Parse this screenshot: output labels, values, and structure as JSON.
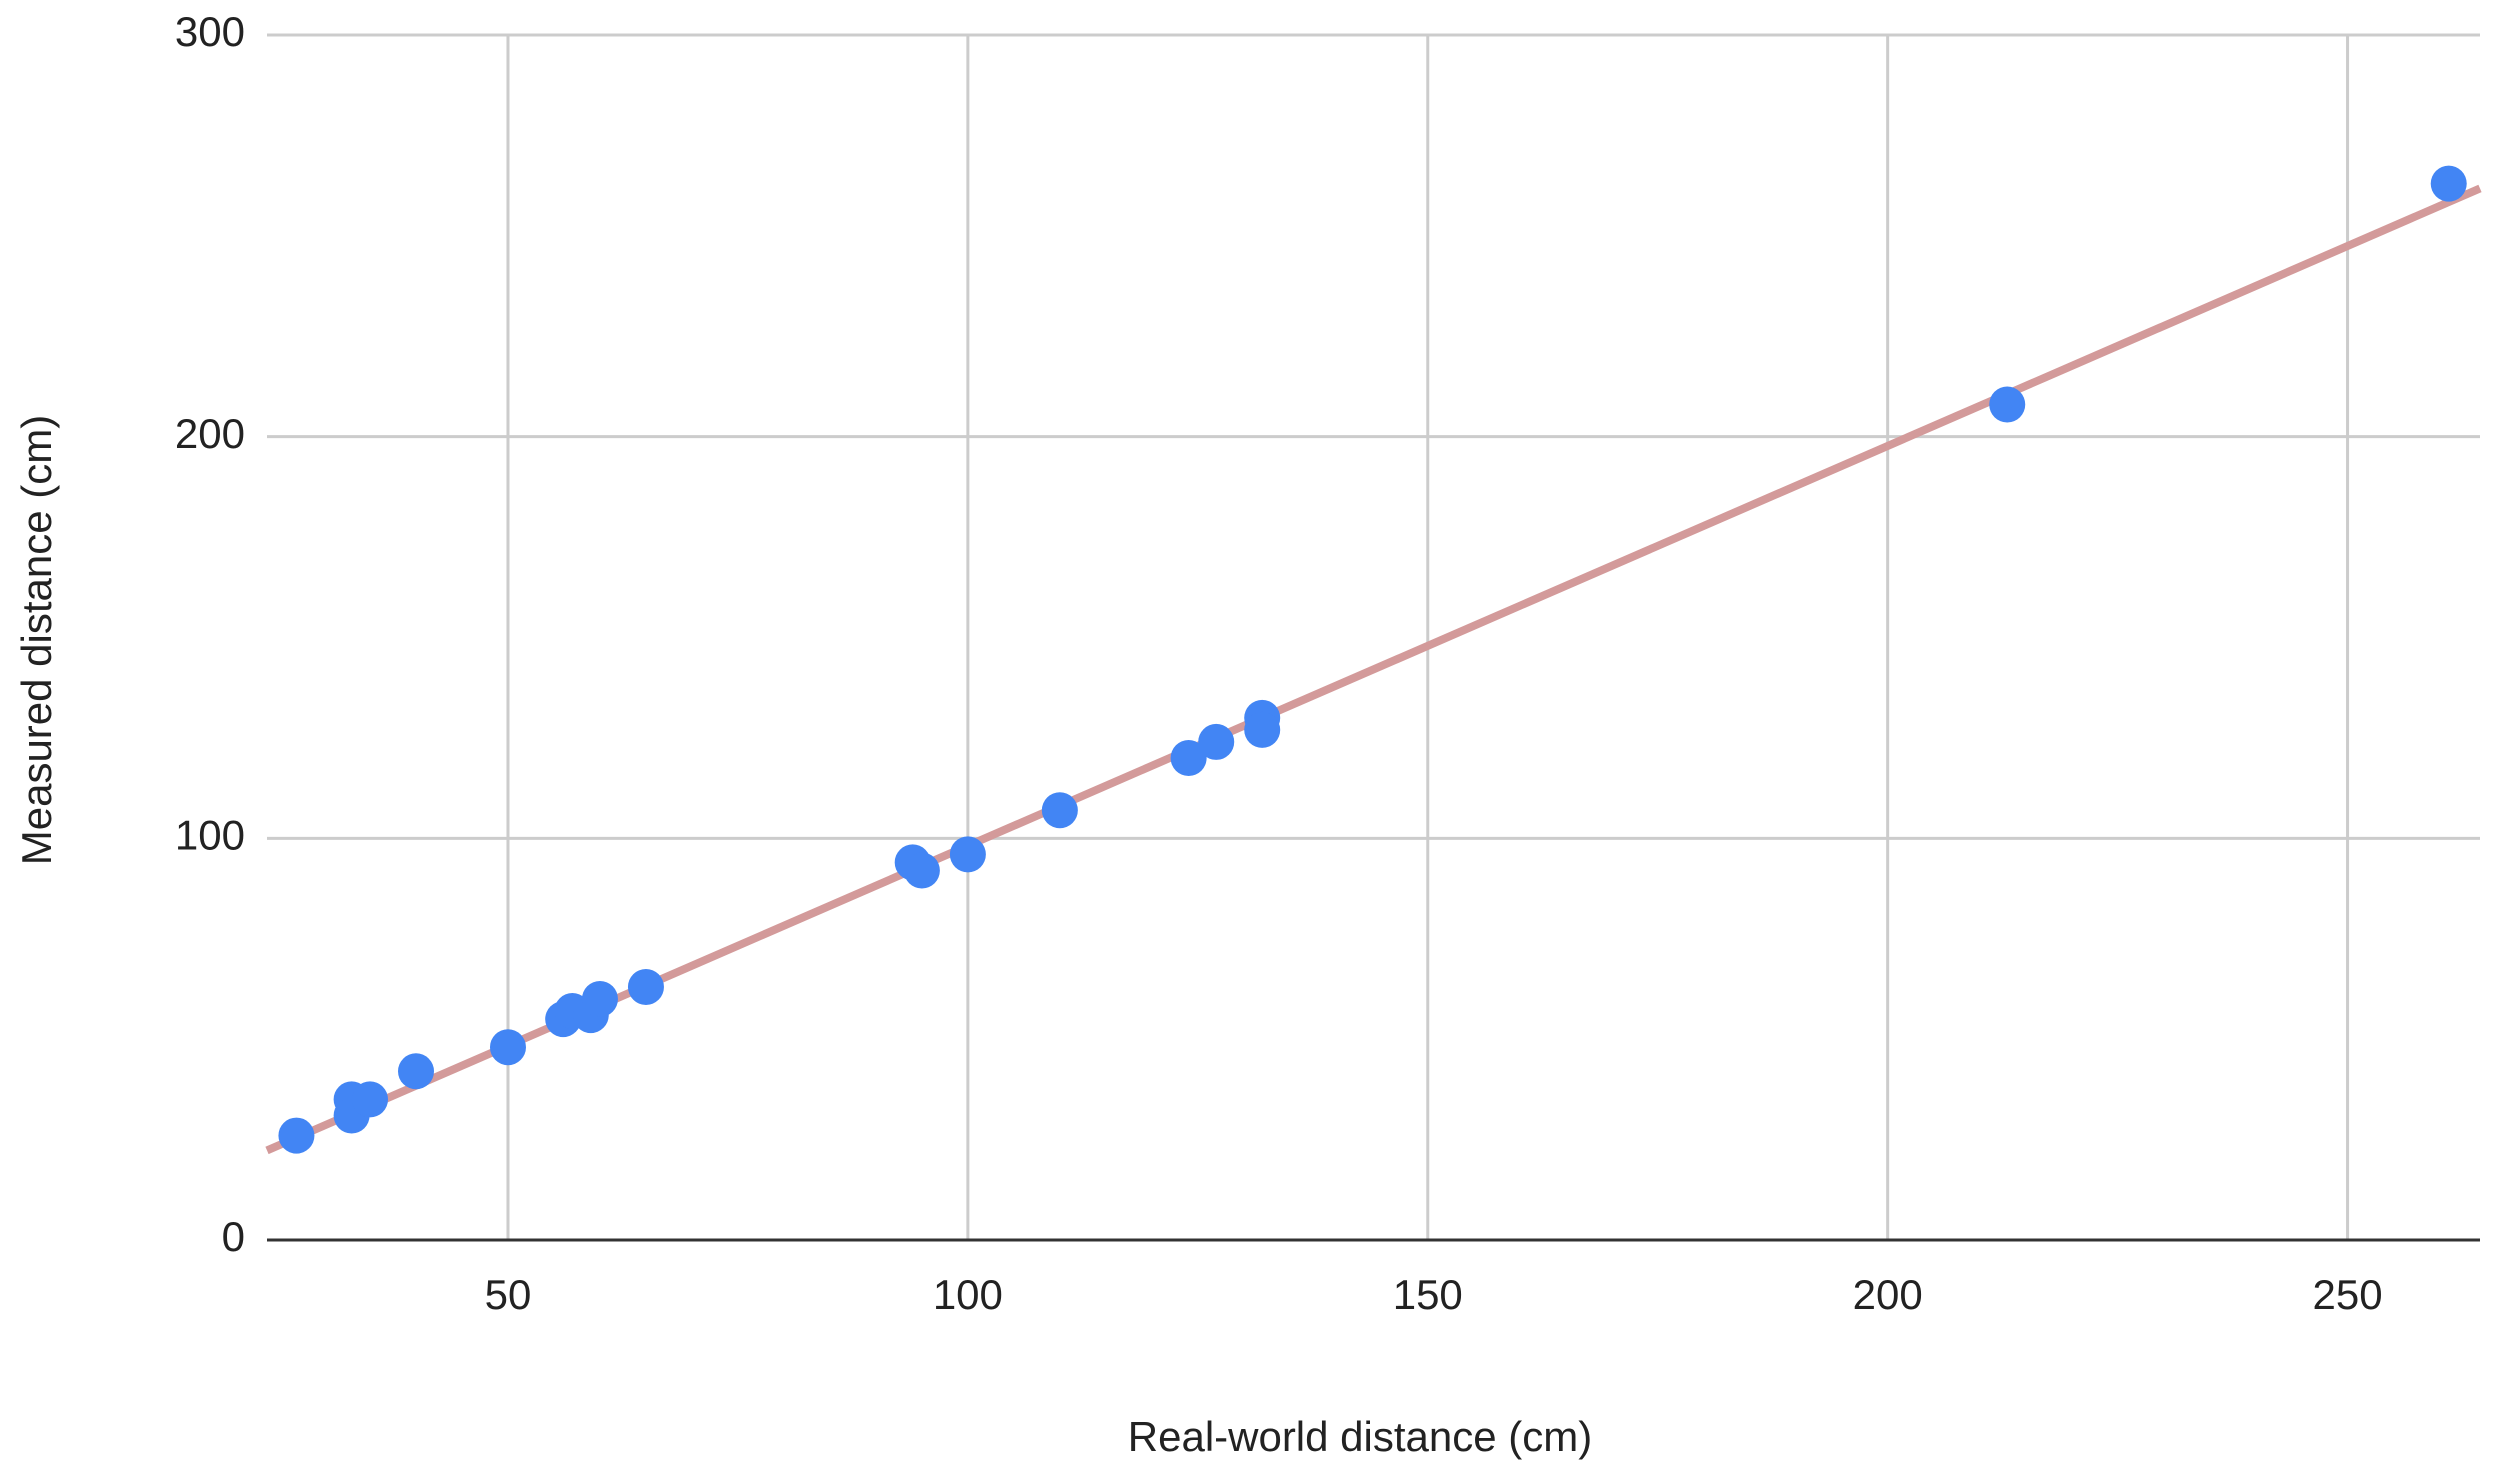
{
  "chart_data": {
    "type": "scatter",
    "x_label": "Real-world distance (cm)",
    "y_label": "Measured distance (cm)",
    "xlim": [
      23.8,
      264.4
    ],
    "xticks": [
      50,
      100,
      150,
      200,
      250
    ],
    "ylim": [
      0,
      300
    ],
    "yticks": [
      0,
      100,
      200,
      300
    ],
    "grid": true,
    "series": [
      {
        "color": "#4285f4",
        "x": [
          27,
          33,
          33,
          35,
          40,
          50,
          56,
          57,
          59,
          60,
          65,
          94,
          95,
          100,
          110,
          124,
          127,
          132,
          132,
          213,
          261
        ],
        "values": [
          26,
          35,
          31,
          35,
          42,
          48,
          55,
          57,
          56,
          60,
          63,
          94,
          92,
          96,
          107,
          120,
          124,
          130,
          127,
          208,
          263
        ]
      }
    ],
    "trendline": {
      "color": "#d39a9a",
      "x": [
        23.8,
        264.4
      ],
      "values": [
        22.3,
        261.8
      ]
    }
  }
}
